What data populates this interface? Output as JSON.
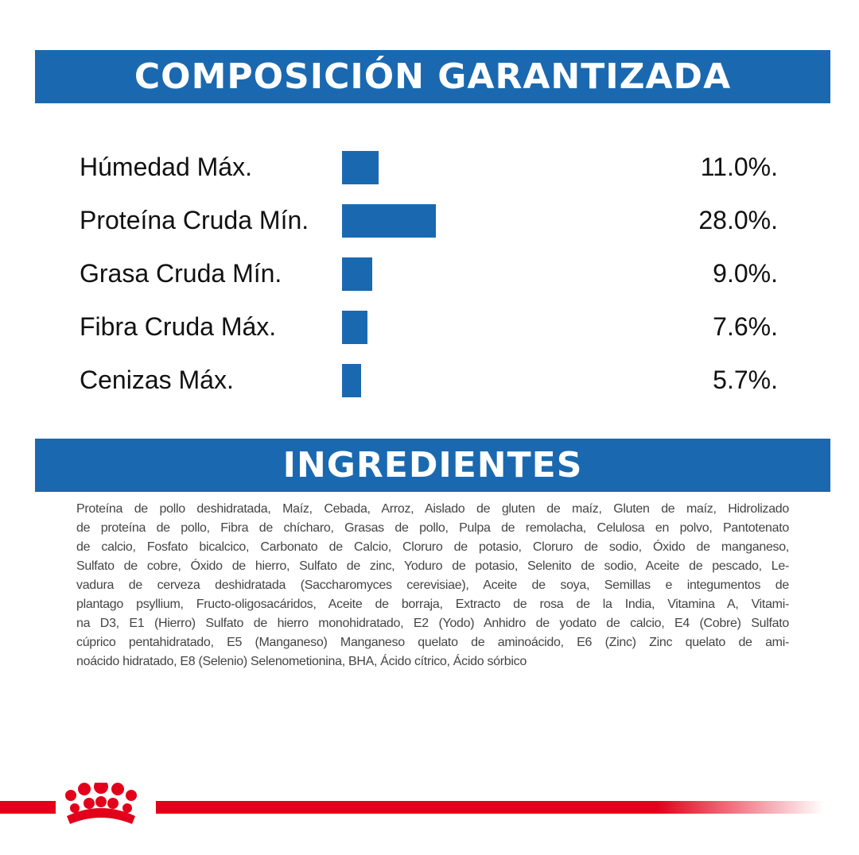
{
  "chart_data": {
    "type": "bar",
    "title": "COMPOSICIÓN GARANTIZADA",
    "categories": [
      "Húmedad Máx.",
      "Proteína Cruda Mín.",
      "Grasa Cruda Mín.",
      "Fibra Cruda Máx.",
      "Cenizas Máx."
    ],
    "values": [
      11.0,
      28.0,
      9.0,
      7.6,
      5.7
    ],
    "value_labels": [
      "11.0%.",
      "28.0%.",
      "9.0%.",
      "7.6%.",
      "5.7%."
    ],
    "color": "#1a69b0"
  },
  "ingredients": {
    "title": "INGREDIENTES",
    "lines": [
      "Proteína de pollo deshidratada, Maíz, Cebada, Arroz, Aislado de gluten de maíz, Gluten de maíz, Hidrolizado",
      "de proteína de pollo, Fibra de chícharo, Grasas de pollo, Pulpa de remolacha, Celulosa en polvo, Pantotenato",
      "de calcio, Fosfato bicalcico, Carbonato de Calcio, Cloruro de potasio, Cloruro de sodio, Óxido de manganeso,",
      "Sulfato de cobre, Óxido de hierro, Sulfato de zinc, Yoduro de potasio, Selenito de sodio, Aceite de pescado, Le-",
      "vadura de cerveza deshidratada (Saccharomyces cerevisiae), Aceite de soya, Semillas e integumentos de",
      "plantago psyllium, Fructo-oligosacáridos, Aceite de borraja, Extracto de rosa de la India, Vitamina A, Vitami-",
      "na D3, E1 (Hierro) Sulfato de hierro monohidratado, E2 (Yodo) Anhidro de yodato de calcio, E4 (Cobre) Sulfato",
      "cúprico pentahidratado, E5 (Manganeso) Manganeso quelato de aminoácido, E6 (Zinc) Zinc quelato de ami-",
      "noácido hidratado, E8 (Selenio) Selenometionina, BHA, Ácido cítrico, Ácido sórbico"
    ]
  }
}
